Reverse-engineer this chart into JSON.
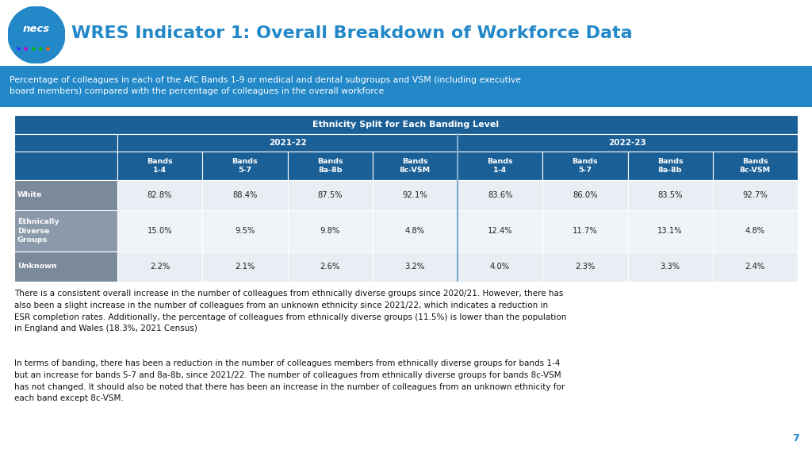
{
  "title": "WRES Indicator 1: Overall Breakdown of Workforce Data",
  "subtitle": "Percentage of colleagues in each of the AfC Bands 1-9 or medical and dental subgroups and VSM (including executive\nboard members) compared with the percentage of colleagues in the overall workforce",
  "table_header": "Ethnicity Split for Each Banding Level",
  "year_headers": [
    "2021-22",
    "2022-23"
  ],
  "band_headers": [
    "Bands\n1-4",
    "Bands\n5-7",
    "Bands\n8a-8b",
    "Bands\n8c-VSM",
    "Bands\n1-4",
    "Bands\n5-7",
    "Bands\n8a-8b",
    "Bands\n8c-VSM"
  ],
  "row_labels": [
    "White",
    "Ethnically\nDiverse\nGroups",
    "Unknown"
  ],
  "data": [
    [
      "82.8%",
      "88.4%",
      "87.5%",
      "92.1%",
      "83.6%",
      "86.0%",
      "83.5%",
      "92.7%"
    ],
    [
      "15.0%",
      "9.5%",
      "9.8%",
      "4.8%",
      "12.4%",
      "11.7%",
      "13.1%",
      "4.8%"
    ],
    [
      "2.2%",
      "2.1%",
      "2.6%",
      "3.2%",
      "4.0%",
      "2.3%",
      "3.3%",
      "2.4%"
    ]
  ],
  "necs_circle_color": "#2288c8",
  "title_color": "#2288c8",
  "subtitle_bg": "#2288c8",
  "subtitle_text_color": "#ffffff",
  "table_outer_border": "#7aaacc",
  "table_header_bg": "#1a5f96",
  "table_header_text_color": "#ffffff",
  "year_header_bg": "#1a5f96",
  "year_header_text_color": "#ffffff",
  "band_header_bg": "#1a5f96",
  "band_header_text_color": "#ffffff",
  "row_label_bg_white": "#7a8a98",
  "row_label_bg_edg": "#8a9aaa",
  "row_label_bg_unknown": "#7a8a98",
  "row_label_text_color": "#ffffff",
  "cell_bg_white": "#e8eef4",
  "cell_bg_edg": "#f0f4f8",
  "cell_bg_unknown": "#e8eef4",
  "cell_text_color": "#222222",
  "separator_color": "#7aaacc",
  "body_text": "There is a consistent overall increase in the number of colleagues from ethnically diverse groups since 2020/21. However, there has\nalso been a slight increase in the number of colleagues from an unknown ethnicity since 2021/22, which indicates a reduction in\nESR completion rates. Additionally, the percentage of colleagues from ethnically diverse groups (11.5%) is lower than the population\nin England and Wales (18.3%, 2021 Census)",
  "body_text2": "In terms of banding, there has been a reduction in the number of colleagues members from ethnically diverse groups for bands 1-4\nbut an increase for bands 5-7 and 8a-8b, since 2021/22. The number of colleagues from ethnically diverse groups for bands 8c-VSM\nhas not changed. It should also be noted that there has been an increase in the number of colleagues from an unknown ethnicity for\neach band except 8c-VSM.",
  "page_number": "7",
  "bg_color": "#ffffff"
}
